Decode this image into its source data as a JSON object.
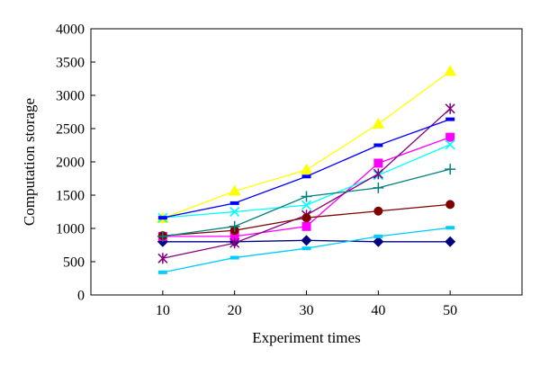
{
  "chart_data": {
    "type": "line",
    "title": "",
    "xlabel": "Experiment times",
    "ylabel": "Computation storage",
    "x": [
      10,
      20,
      30,
      40,
      50
    ],
    "x_ticks": [
      "10",
      "20",
      "30",
      "40",
      "50"
    ],
    "xlim": [
      0,
      60
    ],
    "ylim": [
      0,
      4000
    ],
    "y_ticks": [
      "0",
      "500",
      "1000",
      "1500",
      "2000",
      "2500",
      "3000",
      "3500",
      "4000"
    ],
    "grid": false,
    "legend": "none",
    "series": [
      {
        "marker": "diamond",
        "color": "#000080",
        "values": [
          800,
          800,
          820,
          800,
          800
        ]
      },
      {
        "marker": "square",
        "color": "#ff00ff",
        "values": [
          880,
          880,
          1030,
          1980,
          2370
        ]
      },
      {
        "marker": "triangle",
        "color": "#ffff00",
        "values": [
          1150,
          1560,
          1880,
          2570,
          3360
        ]
      },
      {
        "marker": "x",
        "color": "#00ffff",
        "values": [
          1160,
          1250,
          1350,
          1800,
          2260
        ]
      },
      {
        "marker": "star",
        "color": "#800080",
        "values": [
          550,
          780,
          1200,
          1820,
          2800
        ]
      },
      {
        "marker": "circle",
        "color": "#800000",
        "values": [
          890,
          970,
          1160,
          1260,
          1360
        ]
      },
      {
        "marker": "plus",
        "color": "#008080",
        "values": [
          880,
          1030,
          1480,
          1610,
          1890
        ]
      },
      {
        "marker": "dash",
        "color": "#00ccff",
        "values": [
          340,
          560,
          700,
          880,
          1010
        ]
      },
      {
        "marker": "dash",
        "color": "#0000ff",
        "values": [
          1160,
          1380,
          1780,
          2250,
          2640
        ]
      }
    ]
  }
}
